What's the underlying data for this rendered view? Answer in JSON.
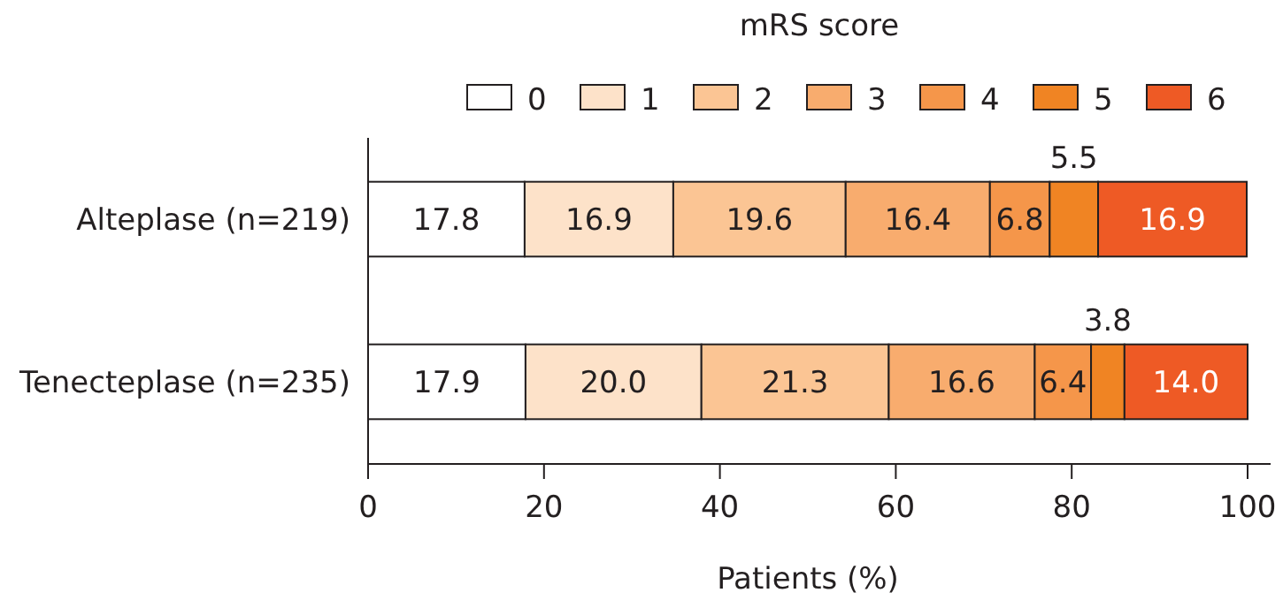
{
  "chart_data": {
    "type": "bar",
    "orientation": "horizontal",
    "stacked": true,
    "legend_title": "mRS score",
    "legend": "top",
    "xlabel": "Patients (%)",
    "categories": [
      "Alteplase (n=219)",
      "Tenecteplase (n=235)"
    ],
    "series": [
      {
        "name": "0",
        "color": "#ffffff",
        "values": [
          17.8,
          17.9
        ],
        "value_labels": [
          "17.8",
          "17.9"
        ]
      },
      {
        "name": "1",
        "color": "#fde2c9",
        "values": [
          16.9,
          20.0
        ],
        "value_labels": [
          "16.9",
          "20.0"
        ]
      },
      {
        "name": "2",
        "color": "#fbc594",
        "values": [
          19.6,
          21.3
        ],
        "value_labels": [
          "19.6",
          "21.3"
        ]
      },
      {
        "name": "3",
        "color": "#f8ac6e",
        "values": [
          16.4,
          16.6
        ],
        "value_labels": [
          "16.4",
          "16.6"
        ]
      },
      {
        "name": "4",
        "color": "#f5964a",
        "values": [
          6.8,
          6.4
        ],
        "value_labels": [
          "6.8",
          "6.4"
        ]
      },
      {
        "name": "5",
        "color": "#f08423",
        "values": [
          5.5,
          3.8
        ],
        "value_labels": [
          "5.5",
          "3.8"
        ]
      },
      {
        "name": "6",
        "color": "#ee5a25",
        "values": [
          16.9,
          14.0
        ],
        "value_labels": [
          "16.9",
          "14.0"
        ]
      }
    ],
    "xlim": [
      0,
      100
    ],
    "xticks": [
      0,
      20,
      40,
      60,
      80,
      100
    ]
  }
}
